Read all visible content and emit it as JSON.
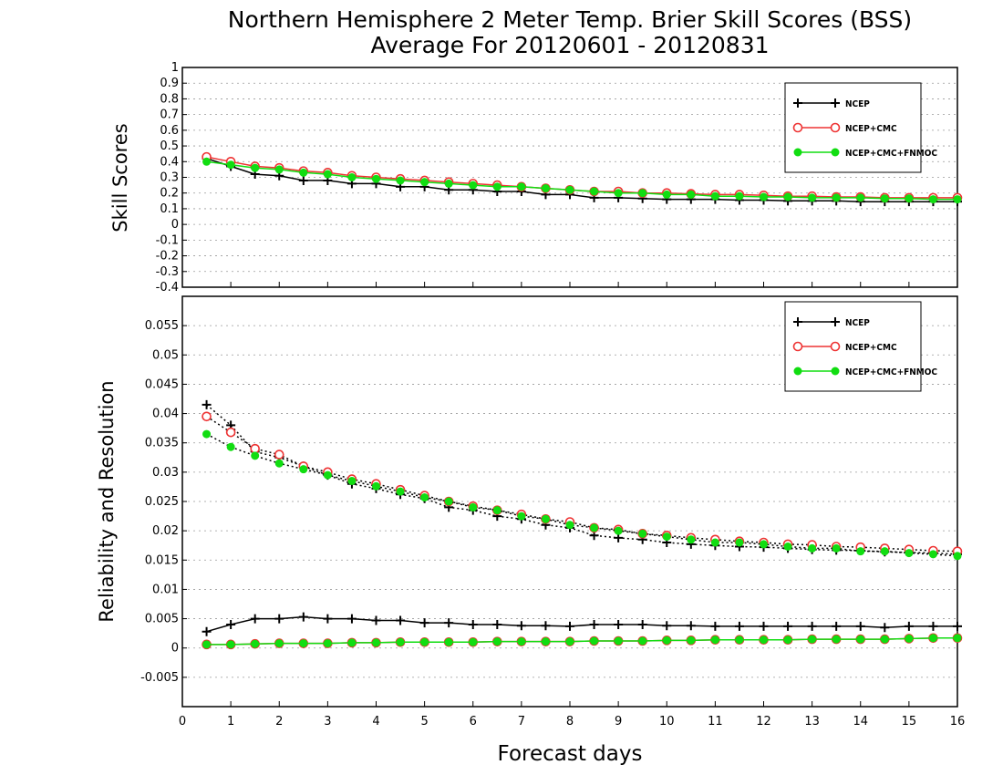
{
  "figure": {
    "title_line1": "Northern Hemisphere 2 Meter Temp. Brier Skill Scores (BSS)",
    "title_line2": "Average For 20120601 - 20120831",
    "xlabel": "Forecast days"
  },
  "colors": {
    "NCEP": "#000000",
    "NCEP+CMC": "#ee3333",
    "NCEP+CMC+FNMOC": "#11dd11",
    "grid": "#999999"
  },
  "chart_data": [
    {
      "type": "line",
      "panel": "top",
      "ylabel": "Skill Scores",
      "xlim": [
        0,
        16
      ],
      "ylim": [
        -0.4,
        1
      ],
      "x_ticks": [
        0,
        1,
        2,
        3,
        4,
        5,
        6,
        7,
        8,
        9,
        10,
        11,
        12,
        13,
        14,
        15,
        16
      ],
      "y_ticks": [
        -0.4,
        -0.3,
        -0.2,
        -0.1,
        0,
        0.1,
        0.2,
        0.3,
        0.4,
        0.5,
        0.6,
        0.7,
        0.8,
        0.9,
        1
      ],
      "y_tick_labels": [
        "-0.4",
        "-0.3",
        "-0.2",
        "-0.1",
        "0",
        "0.1",
        "0.2",
        "0.3",
        "0.4",
        "0.5",
        "0.6",
        "0.7",
        "0.8",
        "0.9",
        "1"
      ],
      "grid": true,
      "legend_position": "top-right",
      "x": [
        0.5,
        1,
        1.5,
        2,
        2.5,
        3,
        3.5,
        4,
        4.5,
        5,
        5.5,
        6,
        6.5,
        7,
        7.5,
        8,
        8.5,
        9,
        9.5,
        10,
        10.5,
        11,
        11.5,
        12,
        12.5,
        13,
        13.5,
        14,
        14.5,
        15,
        15.5,
        16
      ],
      "series": [
        {
          "name": "NCEP",
          "marker": "plus",
          "style": "solid",
          "values": [
            0.42,
            0.37,
            0.32,
            0.31,
            0.28,
            0.28,
            0.26,
            0.26,
            0.24,
            0.24,
            0.22,
            0.22,
            0.21,
            0.21,
            0.19,
            0.19,
            0.17,
            0.17,
            0.165,
            0.16,
            0.16,
            0.16,
            0.155,
            0.155,
            0.15,
            0.15,
            0.15,
            0.145,
            0.145,
            0.145,
            0.145,
            0.145
          ]
        },
        {
          "name": "NCEP+CMC",
          "marker": "circle-open",
          "style": "solid",
          "values": [
            0.43,
            0.4,
            0.37,
            0.36,
            0.34,
            0.33,
            0.31,
            0.3,
            0.29,
            0.28,
            0.27,
            0.26,
            0.25,
            0.24,
            0.23,
            0.22,
            0.21,
            0.21,
            0.2,
            0.2,
            0.195,
            0.19,
            0.19,
            0.185,
            0.18,
            0.18,
            0.175,
            0.175,
            0.17,
            0.17,
            0.17,
            0.17
          ]
        },
        {
          "name": "NCEP+CMC+FNMOC",
          "marker": "circle-filled",
          "style": "solid",
          "values": [
            0.4,
            0.38,
            0.36,
            0.35,
            0.33,
            0.32,
            0.3,
            0.29,
            0.28,
            0.27,
            0.26,
            0.25,
            0.24,
            0.24,
            0.23,
            0.22,
            0.21,
            0.2,
            0.2,
            0.19,
            0.19,
            0.18,
            0.18,
            0.175,
            0.175,
            0.17,
            0.17,
            0.17,
            0.165,
            0.165,
            0.16,
            0.16
          ]
        }
      ]
    },
    {
      "type": "line",
      "panel": "bottom",
      "ylabel": "Reliability and Resolution",
      "xlim": [
        0,
        16
      ],
      "ylim": [
        -0.01,
        0.06
      ],
      "x_ticks": [
        0,
        1,
        2,
        3,
        4,
        5,
        6,
        7,
        8,
        9,
        10,
        11,
        12,
        13,
        14,
        15,
        16
      ],
      "y_ticks": [
        -0.005,
        0,
        0.005,
        0.01,
        0.015,
        0.02,
        0.025,
        0.03,
        0.035,
        0.04,
        0.045,
        0.05,
        0.055
      ],
      "y_tick_labels": [
        "-0.005",
        "0",
        "0.005",
        "0.01",
        "0.015",
        "0.02",
        "0.025",
        "0.03",
        "0.035",
        "0.04",
        "0.045",
        "0.05",
        "0.055"
      ],
      "grid": true,
      "legend_position": "top-right",
      "x": [
        0.5,
        1,
        1.5,
        2,
        2.5,
        3,
        3.5,
        4,
        4.5,
        5,
        5.5,
        6,
        6.5,
        7,
        7.5,
        8,
        8.5,
        9,
        9.5,
        10,
        10.5,
        11,
        11.5,
        12,
        12.5,
        13,
        13.5,
        14,
        14.5,
        15,
        15.5,
        16
      ],
      "series": [
        {
          "name": "NCEP",
          "group": "resolution",
          "marker": "plus",
          "style": "dotted",
          "values": [
            0.0415,
            0.038,
            0.0335,
            0.0325,
            0.031,
            0.0295,
            0.028,
            0.0272,
            0.0262,
            0.0255,
            0.024,
            0.0235,
            0.0225,
            0.022,
            0.021,
            0.0205,
            0.0192,
            0.0188,
            0.0185,
            0.018,
            0.0177,
            0.0175,
            0.0173,
            0.0172,
            0.017,
            0.0168,
            0.0167,
            0.0166,
            0.0164,
            0.0163,
            0.0162,
            0.016
          ]
        },
        {
          "name": "NCEP+CMC",
          "group": "resolution",
          "marker": "circle-open",
          "style": "dotted",
          "values": [
            0.0395,
            0.0368,
            0.034,
            0.033,
            0.031,
            0.03,
            0.0288,
            0.028,
            0.027,
            0.026,
            0.025,
            0.0242,
            0.0235,
            0.0228,
            0.022,
            0.0215,
            0.0205,
            0.0202,
            0.0195,
            0.0192,
            0.0188,
            0.0185,
            0.0182,
            0.018,
            0.0177,
            0.0176,
            0.0173,
            0.0172,
            0.017,
            0.0168,
            0.0166,
            0.0165
          ]
        },
        {
          "name": "NCEP+CMC+FNMOC",
          "group": "resolution",
          "marker": "circle-filled",
          "style": "dotted",
          "values": [
            0.0365,
            0.0343,
            0.0328,
            0.0315,
            0.0305,
            0.0295,
            0.0285,
            0.0276,
            0.0267,
            0.0257,
            0.025,
            0.024,
            0.0235,
            0.0225,
            0.022,
            0.021,
            0.0205,
            0.02,
            0.0195,
            0.019,
            0.0185,
            0.018,
            0.018,
            0.0177,
            0.0173,
            0.017,
            0.017,
            0.0165,
            0.0165,
            0.0162,
            0.016,
            0.0157
          ]
        },
        {
          "name": "NCEP",
          "group": "reliability",
          "marker": "plus",
          "style": "solid",
          "values": [
            0.0028,
            0.004,
            0.005,
            0.005,
            0.0053,
            0.005,
            0.005,
            0.0047,
            0.0047,
            0.0043,
            0.0043,
            0.004,
            0.004,
            0.0038,
            0.0038,
            0.0037,
            0.004,
            0.004,
            0.004,
            0.0038,
            0.0038,
            0.0037,
            0.0037,
            0.0037,
            0.0037,
            0.0037,
            0.0037,
            0.0037,
            0.0035,
            0.0037,
            0.0037,
            0.0037
          ]
        },
        {
          "name": "NCEP+CMC",
          "group": "reliability",
          "marker": "circle-open",
          "style": "solid",
          "values": [
            0.0006,
            0.0006,
            0.0007,
            0.0008,
            0.0008,
            0.0008,
            0.0009,
            0.0009,
            0.001,
            0.001,
            0.001,
            0.001,
            0.0011,
            0.0011,
            0.0011,
            0.0011,
            0.0012,
            0.0012,
            0.0012,
            0.0013,
            0.0013,
            0.0014,
            0.0014,
            0.0014,
            0.0014,
            0.0015,
            0.0015,
            0.0015,
            0.0015,
            0.0016,
            0.0017,
            0.0017
          ]
        },
        {
          "name": "NCEP+CMC+FNMOC",
          "group": "reliability",
          "marker": "circle-filled",
          "style": "solid",
          "values": [
            0.0006,
            0.0006,
            0.0007,
            0.0008,
            0.0008,
            0.0008,
            0.0009,
            0.0009,
            0.001,
            0.001,
            0.001,
            0.001,
            0.0011,
            0.0011,
            0.0011,
            0.0011,
            0.0012,
            0.0012,
            0.0012,
            0.0013,
            0.0013,
            0.0014,
            0.0014,
            0.0014,
            0.0014,
            0.0015,
            0.0015,
            0.0015,
            0.0015,
            0.0016,
            0.0017,
            0.0017
          ]
        }
      ]
    }
  ],
  "legend": {
    "entries": [
      "NCEP",
      "NCEP+CMC",
      "NCEP+CMC+FNMOC"
    ]
  }
}
